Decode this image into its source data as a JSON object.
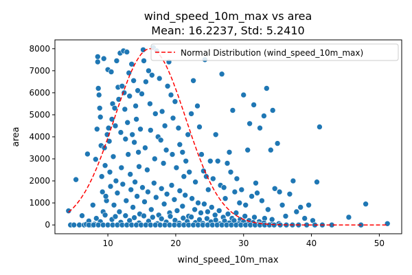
{
  "chart_data": {
    "type": "scatter",
    "title": "wind_speed_10m_max vs area",
    "subtitle": "Mean: 16.2237, Std: 5.2410",
    "xlabel": "wind_speed_10m_max",
    "ylabel": "area",
    "xlim": [
      2.2,
      53.3
    ],
    "ylim": [
      -400,
      8400
    ],
    "xticks": [
      "10",
      "20",
      "30",
      "40",
      "50"
    ],
    "xtick_values": [
      10,
      20,
      30,
      40,
      50
    ],
    "yticks": [
      "0",
      "1000",
      "2000",
      "3000",
      "4000",
      "5000",
      "6000",
      "7000",
      "8000"
    ],
    "ytick_values": [
      0,
      1000,
      2000,
      3000,
      4000,
      5000,
      6000,
      7000,
      8000
    ],
    "grid": false,
    "legend": {
      "position": "top-right",
      "entries": [
        "Normal Distribution (wind_speed_10m_max)"
      ]
    },
    "point_color": "#1f77b4",
    "curve_color": "#ff0000",
    "normal_mean": 16.2237,
    "normal_std": 5.241,
    "normal_peak": 8000,
    "points": [
      [
        4.2,
        640
      ],
      [
        4.5,
        0
      ],
      [
        5.0,
        0
      ],
      [
        5.3,
        2060
      ],
      [
        5.8,
        0
      ],
      [
        6.2,
        420
      ],
      [
        6.5,
        0
      ],
      [
        6.8,
        30
      ],
      [
        7.0,
        3220
      ],
      [
        7.2,
        180
      ],
      [
        7.5,
        0
      ],
      [
        7.8,
        900
      ],
      [
        8.0,
        40
      ],
      [
        8.2,
        2980
      ],
      [
        8.4,
        4350
      ],
      [
        8.5,
        7640
      ],
      [
        8.5,
        7400
      ],
      [
        8.6,
        6200
      ],
      [
        8.7,
        5900
      ],
      [
        8.8,
        5300
      ],
      [
        8.9,
        4900
      ],
      [
        9.0,
        3600
      ],
      [
        9.1,
        2200
      ],
      [
        9.2,
        1500
      ],
      [
        9.3,
        600
      ],
      [
        9.4,
        7550
      ],
      [
        9.5,
        3500
      ],
      [
        9.6,
        2700
      ],
      [
        9.8,
        1100
      ],
      [
        9.9,
        4100
      ],
      [
        10.0,
        7050
      ],
      [
        10.1,
        4400
      ],
      [
        10.2,
        3800
      ],
      [
        10.3,
        2400
      ],
      [
        10.5,
        6950
      ],
      [
        10.6,
        4800
      ],
      [
        10.7,
        5500
      ],
      [
        10.8,
        3100
      ],
      [
        11.0,
        5300
      ],
      [
        11.1,
        4500
      ],
      [
        11.2,
        2000
      ],
      [
        11.3,
        7450
      ],
      [
        11.5,
        6250
      ],
      [
        11.6,
        5700
      ],
      [
        11.8,
        7800
      ],
      [
        11.9,
        4200
      ],
      [
        12.0,
        2600
      ],
      [
        12.1,
        6300
      ],
      [
        12.3,
        7900
      ],
      [
        12.4,
        6000
      ],
      [
        12.5,
        5250
      ],
      [
        12.6,
        3900
      ],
      [
        12.8,
        7850
      ],
      [
        12.9,
        4650
      ],
      [
        13.0,
        3200
      ],
      [
        13.1,
        6900
      ],
      [
        13.2,
        5850
      ],
      [
        13.3,
        2300
      ],
      [
        13.5,
        7300
      ],
      [
        13.6,
        4100
      ],
      [
        13.8,
        6550
      ],
      [
        13.9,
        3750
      ],
      [
        14.1,
        5400
      ],
      [
        14.2,
        4800
      ],
      [
        14.4,
        6100
      ],
      [
        14.5,
        3300
      ],
      [
        14.6,
        2650
      ],
      [
        14.8,
        4350
      ],
      [
        15.0,
        5950
      ],
      [
        15.2,
        7950
      ],
      [
        15.3,
        7450
      ],
      [
        15.5,
        3500
      ],
      [
        15.6,
        6500
      ],
      [
        15.8,
        2500
      ],
      [
        16.0,
        7000
      ],
      [
        16.2,
        5500
      ],
      [
        16.3,
        4300
      ],
      [
        16.5,
        6800
      ],
      [
        16.7,
        8050
      ],
      [
        16.9,
        3000
      ],
      [
        17.0,
        5050
      ],
      [
        17.2,
        7900
      ],
      [
        17.4,
        4000
      ],
      [
        17.6,
        6650
      ],
      [
        17.8,
        3850
      ],
      [
        18.0,
        5150
      ],
      [
        18.2,
        2800
      ],
      [
        18.4,
        4500
      ],
      [
        18.6,
        3400
      ],
      [
        18.8,
        6300
      ],
      [
        19.0,
        7400
      ],
      [
        19.3,
        5900
      ],
      [
        19.5,
        3200
      ],
      [
        19.6,
        4850
      ],
      [
        19.9,
        5600
      ],
      [
        20.1,
        2600
      ],
      [
        20.4,
        4400
      ],
      [
        20.6,
        3650
      ],
      [
        21.0,
        3300
      ],
      [
        21.2,
        2200
      ],
      [
        21.5,
        2900
      ],
      [
        21.8,
        4100
      ],
      [
        22.0,
        2400
      ],
      [
        22.3,
        5050
      ],
      [
        22.6,
        6550
      ],
      [
        22.9,
        1950
      ],
      [
        23.2,
        5400
      ],
      [
        23.5,
        4450
      ],
      [
        23.8,
        3200
      ],
      [
        24.1,
        2450
      ],
      [
        24.3,
        7500
      ],
      [
        24.5,
        2200
      ],
      [
        24.8,
        1600
      ],
      [
        25.1,
        2900
      ],
      [
        25.5,
        2100
      ],
      [
        25.9,
        4100
      ],
      [
        26.2,
        2900
      ],
      [
        26.6,
        1800
      ],
      [
        26.8,
        6850
      ],
      [
        27.1,
        1700
      ],
      [
        27.3,
        1200
      ],
      [
        27.6,
        2800
      ],
      [
        27.9,
        3300
      ],
      [
        28.1,
        2400
      ],
      [
        28.4,
        5200
      ],
      [
        28.7,
        1500
      ],
      [
        29.0,
        2100
      ],
      [
        29.4,
        1000
      ],
      [
        29.7,
        1600
      ],
      [
        30.0,
        5900
      ],
      [
        30.3,
        900
      ],
      [
        30.6,
        3400
      ],
      [
        30.9,
        4600
      ],
      [
        31.2,
        1300
      ],
      [
        31.5,
        5450
      ],
      [
        31.8,
        1900
      ],
      [
        32.0,
        1450
      ],
      [
        32.4,
        4400
      ],
      [
        32.7,
        1100
      ],
      [
        33.0,
        4950
      ],
      [
        33.4,
        6200
      ],
      [
        33.6,
        700
      ],
      [
        34.0,
        3400
      ],
      [
        34.3,
        5200
      ],
      [
        34.6,
        1650
      ],
      [
        35.0,
        3700
      ],
      [
        35.3,
        1500
      ],
      [
        35.7,
        900
      ],
      [
        36.2,
        400
      ],
      [
        36.8,
        1400
      ],
      [
        37.3,
        2000
      ],
      [
        37.8,
        600
      ],
      [
        38.4,
        800
      ],
      [
        39.0,
        300
      ],
      [
        39.6,
        900
      ],
      [
        40.2,
        200
      ],
      [
        40.8,
        1950
      ],
      [
        41.2,
        4450
      ],
      [
        41.6,
        0
      ],
      [
        43.0,
        0
      ],
      [
        45.5,
        350
      ],
      [
        47.3,
        0
      ],
      [
        48.0,
        950
      ],
      [
        51.2,
        60
      ],
      [
        9.7,
        1300
      ],
      [
        10.4,
        1750
      ],
      [
        10.9,
        900
      ],
      [
        11.4,
        1450
      ],
      [
        11.7,
        600
      ],
      [
        12.2,
        1850
      ],
      [
        12.7,
        1100
      ],
      [
        13.4,
        1600
      ],
      [
        13.7,
        800
      ],
      [
        14.0,
        1950
      ],
      [
        14.3,
        1300
      ],
      [
        14.7,
        500
      ],
      [
        15.1,
        1700
      ],
      [
        15.4,
        1050
      ],
      [
        15.9,
        1500
      ],
      [
        16.4,
        700
      ],
      [
        16.8,
        1900
      ],
      [
        17.1,
        1250
      ],
      [
        17.5,
        450
      ],
      [
        17.9,
        1650
      ],
      [
        18.3,
        950
      ],
      [
        18.7,
        1400
      ],
      [
        19.1,
        550
      ],
      [
        19.4,
        1800
      ],
      [
        19.8,
        1150
      ],
      [
        20.2,
        650
      ],
      [
        20.6,
        1550
      ],
      [
        21.0,
        850
      ],
      [
        21.4,
        1350
      ],
      [
        21.9,
        400
      ],
      [
        22.4,
        1200
      ],
      [
        22.8,
        700
      ],
      [
        23.3,
        1000
      ],
      [
        23.7,
        550
      ],
      [
        24.2,
        950
      ],
      [
        24.7,
        600
      ],
      [
        25.3,
        800
      ],
      [
        25.8,
        450
      ],
      [
        26.4,
        650
      ],
      [
        27.0,
        350
      ],
      [
        27.7,
        500
      ],
      [
        28.3,
        300
      ],
      [
        28.9,
        550
      ],
      [
        29.5,
        250
      ],
      [
        30.2,
        400
      ],
      [
        30.8,
        200
      ],
      [
        31.6,
        350
      ],
      [
        32.3,
        150
      ],
      [
        33.1,
        300
      ],
      [
        34.2,
        250
      ],
      [
        8.3,
        300
      ],
      [
        8.9,
        150
      ],
      [
        9.6,
        450
      ],
      [
        10.6,
        250
      ],
      [
        11.1,
        380
      ],
      [
        11.9,
        120
      ],
      [
        12.6,
        420
      ],
      [
        13.2,
        200
      ],
      [
        13.9,
        330
      ],
      [
        14.6,
        90
      ],
      [
        15.3,
        410
      ],
      [
        16.0,
        170
      ],
      [
        16.6,
        350
      ],
      [
        17.3,
        60
      ],
      [
        17.9,
        280
      ],
      [
        18.6,
        130
      ],
      [
        19.2,
        390
      ],
      [
        19.9,
        210
      ],
      [
        20.5,
        80
      ],
      [
        21.1,
        310
      ],
      [
        21.7,
        160
      ],
      [
        22.3,
        360
      ],
      [
        22.9,
        110
      ],
      [
        23.5,
        240
      ],
      [
        24.0,
        70
      ],
      [
        24.6,
        290
      ],
      [
        25.2,
        140
      ],
      [
        25.9,
        220
      ],
      [
        26.5,
        50
      ],
      [
        27.2,
        180
      ],
      [
        27.9,
        90
      ],
      [
        28.6,
        200
      ],
      [
        29.3,
        60
      ],
      [
        30.0,
        150
      ],
      [
        30.7,
        40
      ],
      [
        31.4,
        110
      ],
      [
        32.2,
        30
      ],
      [
        33.0,
        90
      ],
      [
        34.1,
        20
      ],
      [
        35.2,
        60
      ],
      [
        7.2,
        0
      ],
      [
        7.9,
        0
      ],
      [
        8.6,
        0
      ],
      [
        9.3,
        0
      ],
      [
        10.0,
        0
      ],
      [
        10.7,
        0
      ],
      [
        11.4,
        0
      ],
      [
        12.1,
        0
      ],
      [
        12.8,
        0
      ],
      [
        13.5,
        0
      ],
      [
        14.2,
        0
      ],
      [
        14.9,
        0
      ],
      [
        15.6,
        0
      ],
      [
        16.3,
        0
      ],
      [
        17.0,
        0
      ],
      [
        17.7,
        0
      ],
      [
        18.4,
        0
      ],
      [
        19.1,
        0
      ],
      [
        19.8,
        0
      ],
      [
        20.5,
        0
      ],
      [
        21.2,
        0
      ],
      [
        21.9,
        0
      ],
      [
        22.6,
        0
      ],
      [
        23.3,
        0
      ],
      [
        24.0,
        0
      ],
      [
        24.7,
        0
      ],
      [
        25.4,
        0
      ],
      [
        26.1,
        0
      ],
      [
        26.8,
        0
      ],
      [
        27.5,
        0
      ],
      [
        28.2,
        0
      ],
      [
        28.9,
        0
      ],
      [
        29.6,
        0
      ],
      [
        30.3,
        0
      ],
      [
        31.0,
        0
      ],
      [
        31.7,
        0
      ],
      [
        32.4,
        0
      ],
      [
        33.1,
        0
      ],
      [
        33.8,
        0
      ],
      [
        34.5,
        0
      ],
      [
        35.4,
        0
      ],
      [
        36.3,
        0
      ],
      [
        37.2,
        0
      ],
      [
        38.1,
        0
      ],
      [
        39.3,
        0
      ],
      [
        40.5,
        0
      ]
    ]
  }
}
